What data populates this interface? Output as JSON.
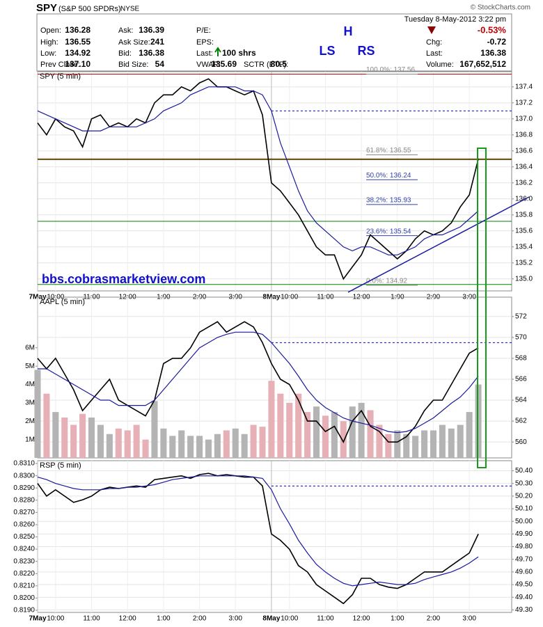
{
  "header": {
    "symbol": "SPY",
    "name": "(S&P 500 SPDRs)",
    "exchange": "NYSE",
    "copyright": "© StockCharts.com",
    "date": "Tuesday  8-May-2012  3:22 pm",
    "change_pct": "-0.53%",
    "quote": [
      [
        {
          "label": "Open:",
          "value": "136.28"
        },
        {
          "label": "Ask:",
          "value": "136.39"
        },
        {
          "label": "P/E:"
        }
      ],
      [
        {
          "label": "High:",
          "value": "136.55"
        },
        {
          "label": "Ask Size:",
          "value": "241"
        },
        {
          "label": "EPS:"
        }
      ],
      [
        {
          "label": "Low:",
          "value": "134.92"
        },
        {
          "label": "Bid:",
          "value": "136.38"
        },
        {
          "label": "Last:",
          "value": "100 shrs"
        }
      ],
      [
        {
          "label": "Prev Close:",
          "value": "137.10"
        },
        {
          "label": "Bid Size:",
          "value": "54"
        },
        {
          "label": "VWAP:",
          "value": "135.69"
        },
        {
          "label": "SCTR (ETF):",
          "value": "80.5"
        }
      ]
    ],
    "quote_right": [
      {
        "label": "Chg:",
        "value": "-0.72"
      },
      {
        "label": "Last:",
        "value": "136.38"
      },
      {
        "label": "Volume:",
        "value": "167,652,512"
      }
    ],
    "annotations": [
      "H",
      "LS",
      "RS"
    ],
    "watermark": "bbs.cobrasmarketview.com"
  },
  "chart_data": [
    {
      "type": "line",
      "title": "SPY (5 min)",
      "grid": true,
      "categories": [
        "7May",
        null,
        "10:00",
        null,
        null,
        null,
        "11:00",
        null,
        null,
        null,
        "12:00",
        null,
        null,
        null,
        "1:00",
        null,
        null,
        null,
        "2:00",
        null,
        null,
        null,
        "3:00",
        null,
        null,
        null,
        "8May",
        null,
        "10:00",
        null,
        null,
        null,
        "11:00",
        null,
        null,
        null,
        "12:00",
        null,
        null,
        null,
        "1:00",
        null,
        null,
        null,
        "2:00",
        null,
        null,
        null,
        "3:00",
        null
      ],
      "ylim": [
        134.85,
        137.59
      ],
      "yticks": [
        137.4,
        137.2,
        {
          "value": 137,
          "label": "137.0"
        },
        136.8,
        136.6,
        136.4,
        136.2,
        {
          "value": 136,
          "label": "136.0"
        },
        135.8,
        135.6,
        135.4,
        135.2,
        {
          "value": 135,
          "label": "135.0"
        }
      ],
      "series": [
        {
          "color": "#000000",
          "values": [
            136.95,
            136.8,
            137.0,
            136.9,
            136.85,
            136.65,
            137.0,
            137.05,
            136.9,
            136.95,
            136.9,
            137.0,
            136.95,
            137.2,
            137.3,
            137.3,
            137.4,
            137.35,
            137.45,
            137.5,
            137.4,
            137.4,
            137.35,
            137.3,
            137.35,
            137.05,
            136.2,
            136.1,
            135.95,
            135.8,
            135.6,
            135.4,
            135.3,
            135.3,
            135.0,
            135.15,
            135.3,
            135.55,
            135.45,
            135.35,
            135.25,
            135.35,
            135.5,
            135.6,
            135.55,
            135.6,
            135.7,
            135.9,
            136.05,
            136.5
          ]
        },
        {
          "color": "#1a1aa0",
          "values": [
            137.1,
            137.05,
            137.0,
            136.95,
            136.9,
            136.85,
            136.85,
            136.85,
            136.9,
            136.9,
            136.9,
            136.9,
            136.95,
            137.0,
            137.1,
            137.15,
            137.2,
            137.3,
            137.35,
            137.4,
            137.4,
            137.4,
            137.4,
            137.35,
            137.35,
            137.3,
            137.1,
            136.7,
            136.4,
            136.1,
            135.85,
            135.7,
            135.6,
            135.5,
            135.4,
            135.35,
            135.4,
            135.4,
            135.35,
            135.3,
            135.3,
            135.35,
            135.4,
            135.5,
            135.55,
            135.55,
            135.6,
            135.65,
            135.75,
            135.85
          ]
        }
      ],
      "hlines": [
        {
          "value": 137.56,
          "color": "#c00000"
        },
        {
          "value": 136.5,
          "color": "#c00000"
        },
        {
          "value": 136.49,
          "color": "#008000"
        },
        {
          "value": 135.72,
          "color": "#008000"
        },
        {
          "value": 134.93,
          "color": "#008000"
        }
      ],
      "dashed": {
        "value": 137.1,
        "color": "#0000cc"
      },
      "fib_levels": [
        {
          "value": 137.56,
          "label": "100.0%: 137.56",
          "color": "#888888"
        },
        {
          "value": 136.55,
          "label": "61.8%: 136.55",
          "color": "#888888"
        },
        {
          "value": 136.24,
          "label": "50.0%: 136.24",
          "color": "#3344aa"
        },
        {
          "value": 135.93,
          "label": "38.2%: 135.93",
          "color": "#3344aa"
        },
        {
          "value": 135.54,
          "label": "23.6%: 135.54",
          "color": "#3344aa"
        },
        {
          "value": 134.92,
          "label": "0.0%: 134.92",
          "color": "#888888"
        }
      ]
    },
    {
      "type": "line",
      "title": "AAPL (5 min)",
      "grid": true,
      "ylim": [
        558.48,
        573.85
      ],
      "yticks": [
        572,
        570,
        568,
        566,
        564,
        562,
        560
      ],
      "y2lim": [
        0,
        8760000
      ],
      "y2ticks": [
        {
          "value": 6000000,
          "label": "6M"
        },
        {
          "value": 5000000,
          "label": "5M"
        },
        {
          "value": 4000000,
          "label": "4M"
        },
        {
          "value": 3000000,
          "label": "3M"
        },
        {
          "value": 2000000,
          "label": "2M"
        },
        {
          "value": 1000000,
          "label": "1M"
        }
      ],
      "series": [
        {
          "kind": "bar",
          "axis": "y2",
          "colors": [
            "#b4b4b4",
            "#e6b0b6"
          ],
          "values": [
            4800000,
            3500000,
            2500000,
            2200000,
            1800000,
            2400000,
            2200000,
            1800000,
            1300000,
            1600000,
            1500000,
            1800000,
            1000000,
            3100000,
            1600000,
            1200000,
            1500000,
            1200000,
            1200000,
            1000000,
            1300000,
            1500000,
            1600000,
            1300000,
            1800000,
            1700000,
            4200000,
            3500000,
            3000000,
            3500000,
            2500000,
            2800000,
            2300000,
            2500000,
            2000000,
            2800000,
            3000000,
            2600000,
            1800000,
            1300000,
            1500000,
            1300000,
            1200000,
            1500000,
            1500000,
            1800000,
            1600000,
            1800000,
            2500000,
            4000000
          ]
        },
        {
          "color": "#000000",
          "values": [
            568,
            567,
            568,
            566.5,
            565,
            563,
            564,
            565,
            566,
            564,
            563.5,
            563,
            562.5,
            564,
            567.5,
            568,
            568,
            569,
            570.5,
            571,
            571.5,
            570.5,
            571,
            571.5,
            571,
            569.5,
            567.5,
            566,
            565.5,
            564,
            562,
            562,
            561,
            561.5,
            560,
            562,
            563,
            561.5,
            561,
            560,
            560,
            560.5,
            561.5,
            563,
            564,
            564,
            565.5,
            567,
            568.5,
            569
          ]
        },
        {
          "color": "#1a1aa0",
          "values": [
            567,
            567,
            566.5,
            566,
            565.5,
            565,
            564.5,
            564,
            564,
            563.5,
            563.5,
            563.5,
            563.5,
            564,
            565,
            566,
            567,
            568,
            569,
            569.5,
            570,
            570.3,
            570.5,
            570.5,
            570.5,
            570.3,
            569.5,
            568.5,
            567.5,
            566.3,
            565,
            564,
            563.3,
            562.8,
            562.3,
            562,
            561.8,
            561.6,
            561.3,
            561,
            560.9,
            561,
            561.3,
            561.8,
            562.3,
            563,
            563.7,
            564.3,
            565.2,
            566.3
          ]
        }
      ],
      "dashed": {
        "value": 569.5,
        "color": "#0000cc"
      }
    },
    {
      "type": "line",
      "title": "RSP (5 min)",
      "grid": true,
      "categories": [
        "7May",
        null,
        "10:00",
        null,
        null,
        null,
        "11:00",
        null,
        null,
        null,
        "12:00",
        null,
        null,
        null,
        "1:00",
        null,
        null,
        null,
        "2:00",
        null,
        null,
        null,
        "3:00",
        null,
        null,
        null,
        "8May",
        null,
        "10:00",
        null,
        null,
        null,
        "11:00",
        null,
        null,
        null,
        "12:00",
        null,
        null,
        null,
        "1:00",
        null,
        null,
        null,
        "2:00",
        null,
        null,
        null,
        "3:00",
        null
      ],
      "ylim": [
        0.81883,
        0.83123
      ],
      "yticks": [
        {
          "value": 0.831,
          "label": "0.8310"
        },
        {
          "value": 0.83,
          "label": "0.8300"
        },
        {
          "value": 0.829,
          "label": "0.8290"
        },
        {
          "value": 0.828,
          "label": "0.8280"
        },
        {
          "value": 0.827,
          "label": "0.8270"
        },
        {
          "value": 0.826,
          "label": "0.8260"
        },
        {
          "value": 0.825,
          "label": "0.8250"
        },
        {
          "value": 0.824,
          "label": "0.8240"
        },
        {
          "value": 0.823,
          "label": "0.8230"
        },
        {
          "value": 0.822,
          "label": "0.8220"
        },
        {
          "value": 0.821,
          "label": "0.8210"
        },
        {
          "value": 0.82,
          "label": "0.8200"
        },
        {
          "value": 0.819,
          "label": "0.8190"
        }
      ],
      "y2lim": [
        49.28,
        50.48
      ],
      "y2ticks": [
        {
          "value": 50.4,
          "label": "50.40"
        },
        {
          "value": 50.3,
          "label": "50.30"
        },
        {
          "value": 50.2,
          "label": "50.20"
        },
        {
          "value": 50.1,
          "label": "50.10"
        },
        {
          "value": 50,
          "label": "50.00"
        },
        {
          "value": 49.9,
          "label": "49.90"
        },
        {
          "value": 49.8,
          "label": "49.80"
        },
        {
          "value": 49.7,
          "label": "49.70"
        },
        {
          "value": 49.6,
          "label": "49.60"
        },
        {
          "value": 49.5,
          "label": "49.50"
        },
        {
          "value": 49.4,
          "label": "49.40"
        },
        {
          "value": 49.3,
          "label": "49.30"
        }
      ],
      "series": [
        {
          "axis": "y2",
          "color": "#000000",
          "values": [
            50.3,
            50.2,
            50.25,
            50.2,
            50.15,
            50.17,
            50.2,
            50.25,
            50.27,
            50.26,
            50.27,
            50.28,
            50.27,
            50.33,
            50.34,
            50.35,
            50.36,
            50.34,
            50.37,
            50.38,
            50.36,
            50.37,
            50.36,
            50.35,
            50.35,
            50.28,
            49.9,
            49.85,
            49.78,
            49.65,
            49.6,
            49.5,
            49.45,
            49.4,
            49.35,
            49.42,
            49.55,
            49.55,
            49.5,
            49.48,
            49.47,
            49.5,
            49.55,
            49.6,
            49.6,
            49.6,
            49.65,
            49.7,
            49.75,
            49.9
          ]
        },
        {
          "axis": "y2",
          "color": "#1a1aa0",
          "values": [
            50.35,
            50.33,
            50.3,
            50.28,
            50.26,
            50.25,
            50.25,
            50.25,
            50.26,
            50.26,
            50.27,
            50.27,
            50.28,
            50.29,
            50.31,
            50.33,
            50.34,
            50.35,
            50.36,
            50.36,
            50.36,
            50.36,
            50.36,
            50.36,
            50.35,
            50.34,
            50.25,
            50.1,
            49.98,
            49.85,
            49.75,
            49.66,
            49.6,
            49.55,
            49.51,
            49.49,
            49.5,
            49.51,
            49.52,
            49.51,
            49.5,
            49.5,
            49.51,
            49.54,
            49.56,
            49.58,
            49.6,
            49.63,
            49.67,
            49.72
          ]
        }
      ],
      "dashed": {
        "value": 50.28,
        "y_axis": "y2",
        "color": "#0000cc"
      }
    }
  ]
}
